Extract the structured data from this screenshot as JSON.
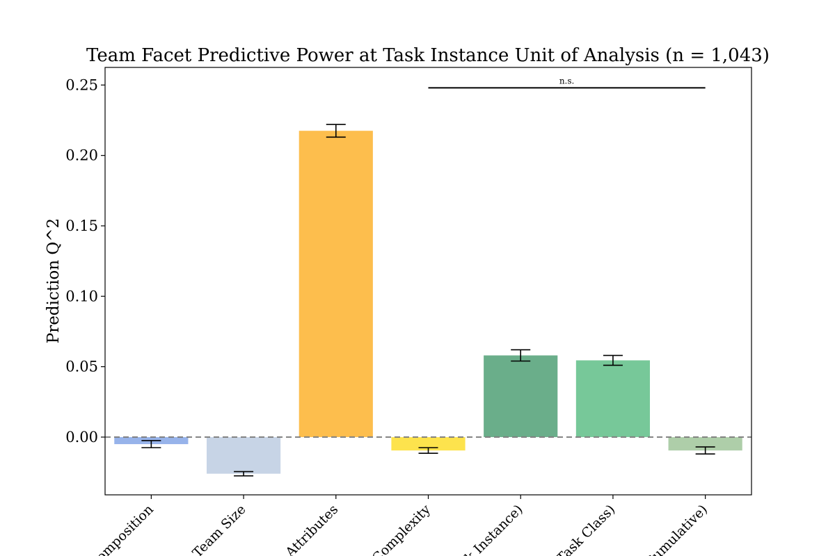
{
  "chart_data": {
    "type": "bar",
    "title": "Team Facet Predictive Power at Task Instance Unit of Analysis (n = 1,043)",
    "xlabel": "",
    "ylabel": "Prediction Q^2",
    "ylim": [
      -0.041,
      0.2625
    ],
    "yticks": [
      0.0,
      0.05,
      0.1,
      0.15,
      0.2,
      0.25
    ],
    "ytick_labels": [
      "0.00",
      "0.05",
      "0.10",
      "0.15",
      "0.20",
      "0.25"
    ],
    "categories": [
      "Composition",
      "Team Size",
      "Task Attributes",
      "Complexity",
      "(Task Instance)",
      "(Task Class)",
      "(Cumulative)"
    ],
    "category_labels": [
      "Composition",
      "Team Size",
      "k Attributes",
      "Complexity",
      "k Instance)",
      "Task Class)",
      "Cumulative)"
    ],
    "values": [
      -0.005,
      -0.026,
      0.2175,
      -0.0095,
      0.058,
      0.0545,
      -0.0095
    ],
    "errors": [
      0.0025,
      0.0015,
      0.0045,
      0.002,
      0.004,
      0.0035,
      0.0025
    ],
    "colors": [
      "#97b3ea",
      "#c7d4e6",
      "#fdbe4d",
      "#fde34d",
      "#6aae8a",
      "#77c899",
      "#aecea9"
    ],
    "baseline": 0.0,
    "grid": false,
    "legend": "none",
    "annotations": [
      {
        "text": "n.s.",
        "from_category": 3,
        "to_category": 6,
        "y": 0.248
      }
    ]
  }
}
